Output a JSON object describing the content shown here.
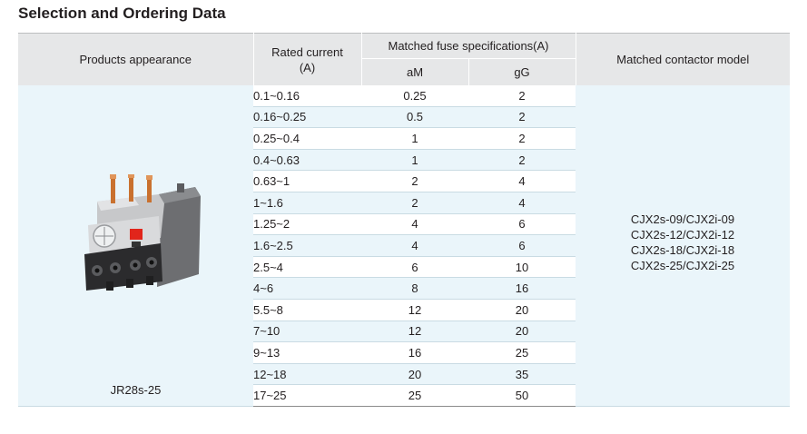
{
  "title": "Selection and Ordering Data",
  "headers": {
    "appearance": "Products appearance",
    "current": "Rated current",
    "current_unit": "(A)",
    "fuse": "Matched fuse specifications(A)",
    "am": "aM",
    "gg": "gG",
    "contactor": "Matched contactor model"
  },
  "product": {
    "model": "JR28s-25",
    "image": "thermal-overload-relay"
  },
  "contactors": [
    "CJX2s-09/CJX2i-09",
    "CJX2s-12/CJX2i-12",
    "CJX2s-18/CJX2i-18",
    "CJX2s-25/CJX2i-25"
  ],
  "rows": [
    {
      "current": "0.1~0.16",
      "am": "0.25",
      "gg": "2"
    },
    {
      "current": "0.16~0.25",
      "am": "0.5",
      "gg": "2"
    },
    {
      "current": "0.25~0.4",
      "am": "1",
      "gg": "2"
    },
    {
      "current": "0.4~0.63",
      "am": "1",
      "gg": "2"
    },
    {
      "current": "0.63~1",
      "am": "2",
      "gg": "4"
    },
    {
      "current": "1~1.6",
      "am": "2",
      "gg": "4"
    },
    {
      "current": "1.25~2",
      "am": "4",
      "gg": "6"
    },
    {
      "current": "1.6~2.5",
      "am": "4",
      "gg": "6"
    },
    {
      "current": "2.5~4",
      "am": "6",
      "gg": "10"
    },
    {
      "current": "4~6",
      "am": "8",
      "gg": "16"
    },
    {
      "current": "5.5~8",
      "am": "12",
      "gg": "20"
    },
    {
      "current": "7~10",
      "am": "12",
      "gg": "20"
    },
    {
      "current": "9~13",
      "am": "16",
      "gg": "25"
    },
    {
      "current": "12~18",
      "am": "20",
      "gg": "35"
    },
    {
      "current": "17~25",
      "am": "25",
      "gg": "50"
    }
  ]
}
